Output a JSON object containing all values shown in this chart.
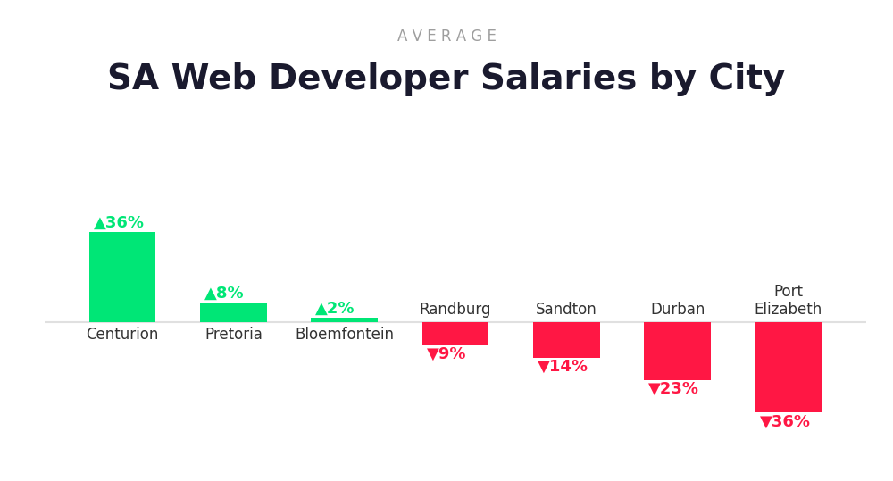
{
  "title": "SA Web Developer Salaries by City",
  "subtitle": "AVERAGE",
  "categories": [
    "Centurion",
    "Pretoria",
    "Bloemfontein",
    "Randburg",
    "Sandton",
    "Durban",
    "Port\nElizabeth"
  ],
  "values": [
    36,
    8,
    2,
    -9,
    -14,
    -23,
    -36
  ],
  "positive_color": "#00E676",
  "negative_color": "#FF1744",
  "background_color": "#FFFFFF",
  "title_color": "#1a1a2e",
  "subtitle_color": "#9e9e9e",
  "label_color_pos": "#00E676",
  "label_color_neg": "#FF1744",
  "bar_width": 0.6,
  "title_fontsize": 28,
  "subtitle_fontsize": 12,
  "label_fontsize": 13,
  "category_fontsize": 12,
  "baseline_color": "#e0e0e0"
}
